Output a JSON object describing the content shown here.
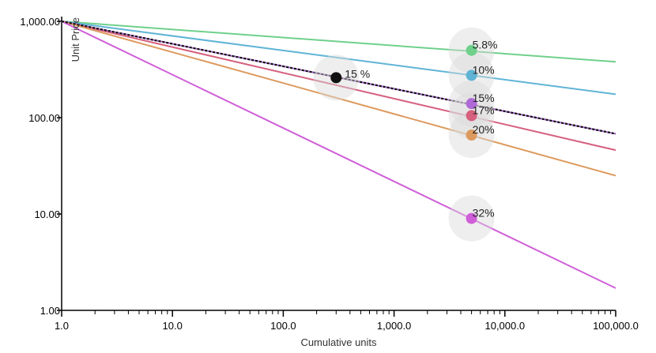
{
  "chart_data": {
    "type": "line",
    "xlabel": "Cumulative units",
    "ylabel": "Unit Price",
    "x_scale": "log",
    "y_scale": "log",
    "xlim": [
      1,
      100000
    ],
    "ylim": [
      1,
      1000
    ],
    "x_ticks": [
      {
        "value": 1,
        "label": "1.0"
      },
      {
        "value": 10,
        "label": "10.0"
      },
      {
        "value": 100,
        "label": "100.0"
      },
      {
        "value": 1000,
        "label": "1,000.0"
      },
      {
        "value": 10000,
        "label": "10,000.0"
      },
      {
        "value": 100000,
        "label": "100,000.0"
      }
    ],
    "y_ticks": [
      {
        "value": 1,
        "label": "1.00"
      },
      {
        "value": 10,
        "label": "10.00"
      },
      {
        "value": 100,
        "label": "100.00"
      },
      {
        "value": 1000,
        "label": "1,000.00"
      }
    ],
    "grid": false,
    "series": [
      {
        "label": "5.8%",
        "color": "#6fd08c",
        "x": [
          1,
          100000
        ],
        "y": [
          1000,
          380
        ],
        "marker": {
          "x": 5000,
          "y": 500
        }
      },
      {
        "label": "10%",
        "color": "#5fb4d6",
        "x": [
          1,
          100000
        ],
        "y": [
          1000,
          175
        ],
        "marker": {
          "x": 5000,
          "y": 275
        }
      },
      {
        "label": "15%",
        "color": "#b06ad8",
        "x": [
          1,
          100000
        ],
        "y": [
          1000,
          68
        ],
        "marker": {
          "x": 5000,
          "y": 140
        }
      },
      {
        "label": "17%",
        "color": "#d6607e",
        "x": [
          1,
          100000
        ],
        "y": [
          1000,
          46
        ],
        "marker": {
          "x": 5000,
          "y": 105
        }
      },
      {
        "label": "20%",
        "color": "#dd9a5e",
        "x": [
          1,
          100000
        ],
        "y": [
          1000,
          25
        ],
        "marker": {
          "x": 5000,
          "y": 66
        }
      },
      {
        "label": "32%",
        "color": "#cf5ed8",
        "x": [
          1,
          100000
        ],
        "y": [
          1000,
          1.7
        ],
        "marker": {
          "x": 5000,
          "y": 9
        }
      }
    ],
    "reference_series": {
      "label": "15 %",
      "color": "#111111",
      "dash": "dotted",
      "x": [
        1,
        100000
      ],
      "y": [
        1000,
        68
      ],
      "marker": {
        "x": 300,
        "y": 260
      }
    }
  }
}
